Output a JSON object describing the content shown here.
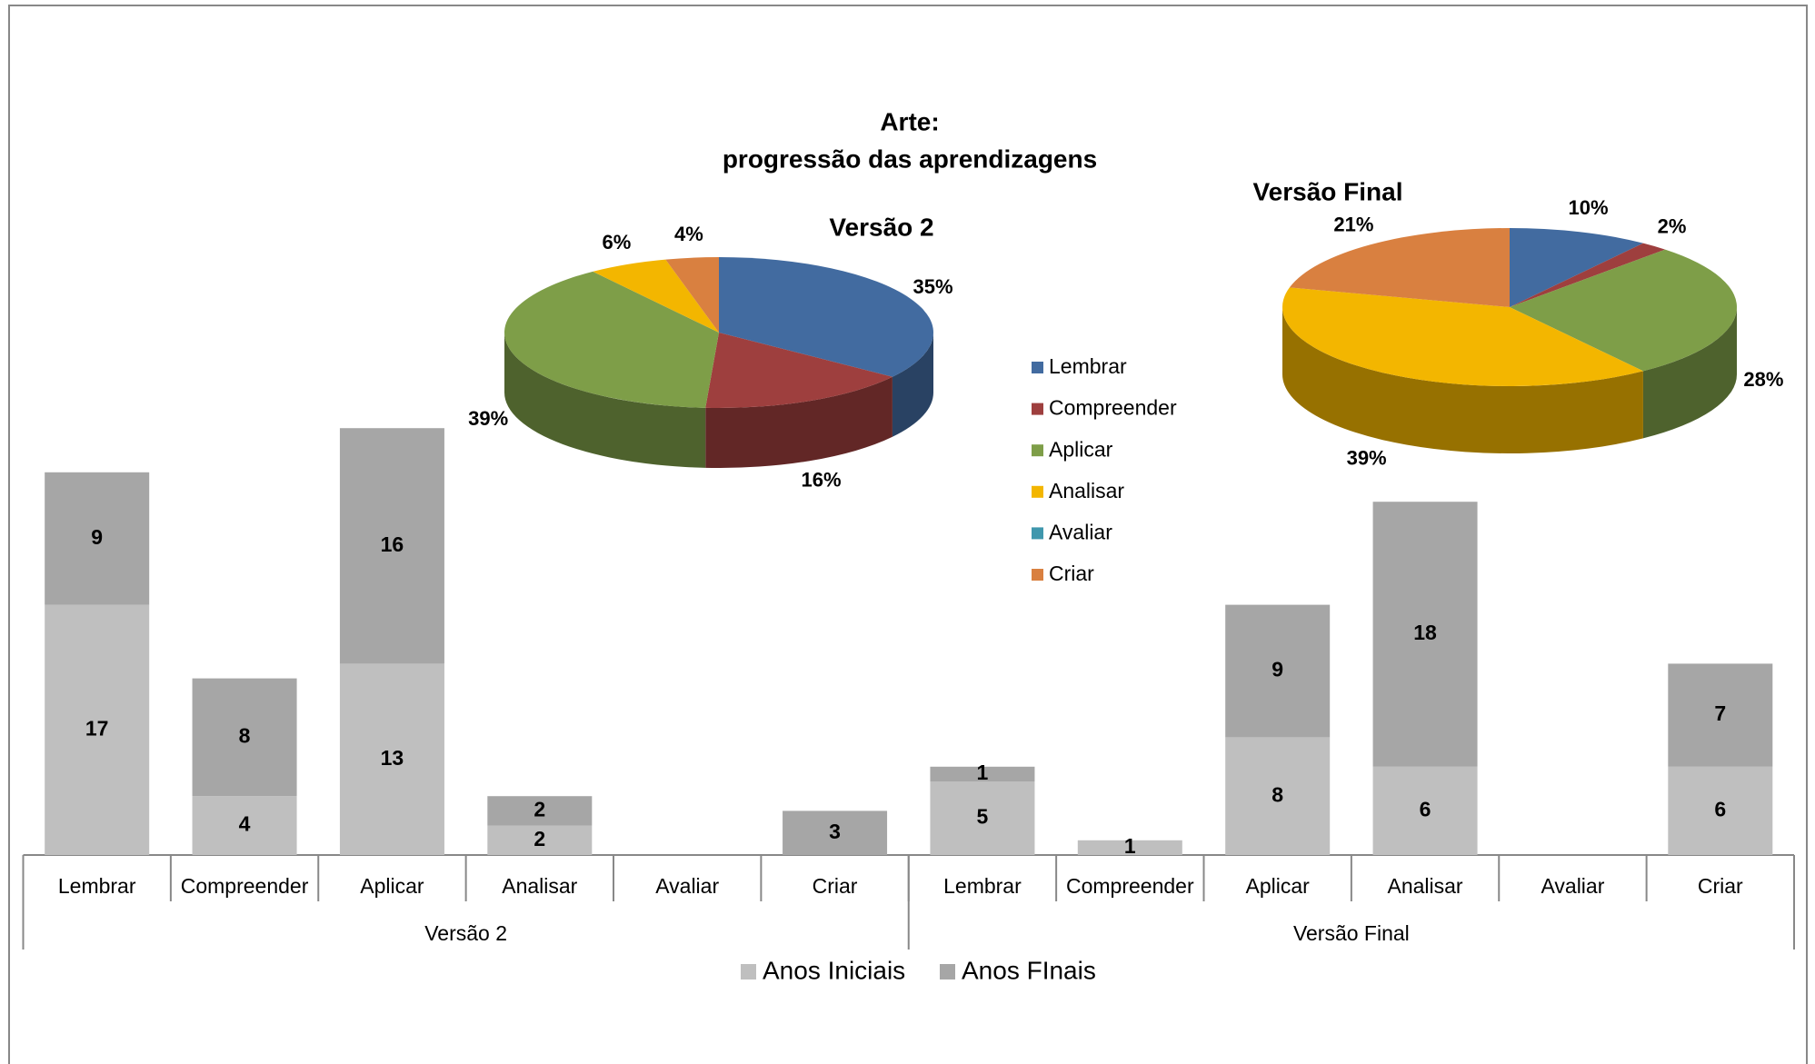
{
  "chart_data": [
    {
      "type": "bar",
      "title": "Arte:",
      "subtitle": "progressão das aprendizagens",
      "stacked": true,
      "categories": [
        "Lembrar",
        "Compreender",
        "Aplicar",
        "Analisar",
        "Avaliar",
        "Criar",
        "Lembrar",
        "Compreender",
        "Aplicar",
        "Analisar",
        "Avaliar",
        "Criar"
      ],
      "groups": [
        {
          "name": "Versão 2",
          "size": 6
        },
        {
          "name": "Versão Final",
          "size": 6
        }
      ],
      "series": [
        {
          "name": "Anos Iniciais",
          "color": "#bfbfbf",
          "values": [
            17,
            4,
            13,
            2,
            null,
            null,
            5,
            1,
            8,
            6,
            null,
            6
          ]
        },
        {
          "name": "Anos FInais",
          "color": "#a6a6a6",
          "values": [
            9,
            8,
            16,
            2,
            null,
            3,
            1,
            null,
            9,
            18,
            null,
            7
          ]
        }
      ],
      "legend": "bottom"
    },
    {
      "type": "pie",
      "title": "Versão 2",
      "categories": [
        "Lembrar",
        "Compreender",
        "Aplicar",
        "Analisar",
        "Avaliar",
        "Criar"
      ],
      "colors": [
        "#426ba0",
        "#9e3f3e",
        "#7e9e48",
        "#f3b600",
        "#3f97ad",
        "#d98040"
      ],
      "values": [
        35,
        16,
        39,
        6,
        null,
        4
      ],
      "value_labels": [
        "35%",
        "16%",
        "39%",
        "6%",
        null,
        "4%"
      ],
      "legend": "right"
    },
    {
      "type": "pie",
      "title": "Versão Final",
      "categories": [
        "Lembrar",
        "Compreender",
        "Aplicar",
        "Analisar",
        "Avaliar",
        "Criar"
      ],
      "colors": [
        "#426ba0",
        "#9e3f3e",
        "#7e9e48",
        "#f3b600",
        "#3f97ad",
        "#d98040"
      ],
      "values": [
        10,
        2,
        28,
        39,
        null,
        21
      ],
      "value_labels": [
        "10%",
        "2%",
        "28%",
        "39%",
        null,
        "21%"
      ]
    }
  ]
}
